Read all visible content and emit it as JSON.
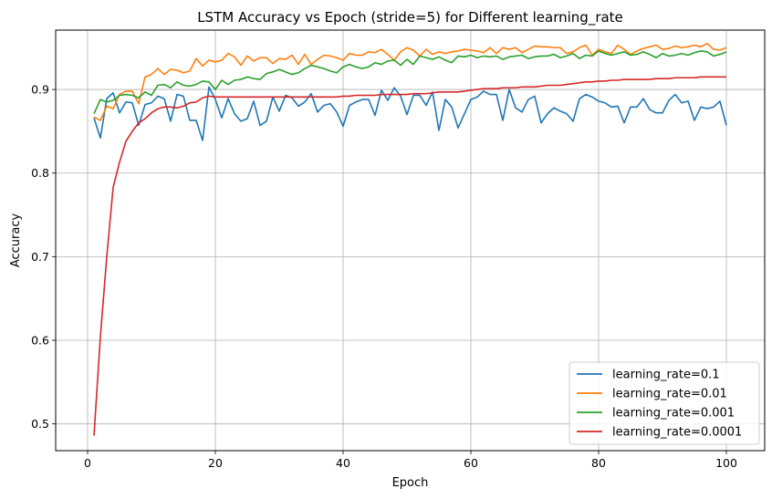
{
  "chart_data": {
    "type": "line",
    "title": "LSTM Accuracy vs Epoch (stride=5) for Different learning_rate",
    "xlabel": "Epoch",
    "ylabel": "Accuracy",
    "xlim": [
      -5,
      106
    ],
    "ylim": [
      0.468,
      0.971
    ],
    "xticks": [
      0,
      20,
      40,
      60,
      80,
      100
    ],
    "yticks": [
      0.5,
      0.6,
      0.7,
      0.8,
      0.9
    ],
    "grid": true,
    "legend_position": "lower-right",
    "x": [
      1,
      2,
      3,
      4,
      5,
      6,
      7,
      8,
      9,
      10,
      11,
      12,
      13,
      14,
      15,
      16,
      17,
      18,
      19,
      20,
      21,
      22,
      23,
      24,
      25,
      26,
      27,
      28,
      29,
      30,
      31,
      32,
      33,
      34,
      35,
      36,
      37,
      38,
      39,
      40,
      41,
      42,
      43,
      44,
      45,
      46,
      47,
      48,
      49,
      50,
      51,
      52,
      53,
      54,
      55,
      56,
      57,
      58,
      59,
      60,
      61,
      62,
      63,
      64,
      65,
      66,
      67,
      68,
      69,
      70,
      71,
      72,
      73,
      74,
      75,
      76,
      77,
      78,
      79,
      80,
      81,
      82,
      83,
      84,
      85,
      86,
      87,
      88,
      89,
      90,
      91,
      92,
      93,
      94,
      95,
      96,
      97,
      98,
      99,
      100
    ],
    "series": [
      {
        "name": "learning_rate=0.1",
        "color": "#1f77b4",
        "values": [
          0.866,
          0.842,
          0.889,
          0.896,
          0.872,
          0.885,
          0.884,
          0.857,
          0.882,
          0.884,
          0.892,
          0.889,
          0.862,
          0.894,
          0.892,
          0.863,
          0.863,
          0.839,
          0.903,
          0.888,
          0.866,
          0.889,
          0.871,
          0.862,
          0.865,
          0.886,
          0.857,
          0.862,
          0.891,
          0.874,
          0.893,
          0.89,
          0.88,
          0.885,
          0.895,
          0.873,
          0.881,
          0.883,
          0.873,
          0.856,
          0.881,
          0.885,
          0.888,
          0.888,
          0.869,
          0.899,
          0.887,
          0.902,
          0.892,
          0.87,
          0.893,
          0.893,
          0.881,
          0.897,
          0.851,
          0.888,
          0.879,
          0.854,
          0.871,
          0.888,
          0.891,
          0.898,
          0.894,
          0.894,
          0.863,
          0.9,
          0.878,
          0.873,
          0.888,
          0.892,
          0.86,
          0.871,
          0.878,
          0.874,
          0.871,
          0.862,
          0.889,
          0.894,
          0.891,
          0.886,
          0.884,
          0.879,
          0.88,
          0.86,
          0.879,
          0.879,
          0.889,
          0.876,
          0.872,
          0.872,
          0.887,
          0.894,
          0.884,
          0.886,
          0.863,
          0.879,
          0.877,
          0.879,
          0.886,
          0.857
        ]
      },
      {
        "name": "learning_rate=0.01",
        "color": "#ff7f0e",
        "values": [
          0.867,
          0.863,
          0.88,
          0.877,
          0.894,
          0.898,
          0.898,
          0.883,
          0.915,
          0.918,
          0.925,
          0.918,
          0.924,
          0.923,
          0.92,
          0.922,
          0.937,
          0.928,
          0.935,
          0.933,
          0.935,
          0.943,
          0.939,
          0.929,
          0.94,
          0.934,
          0.938,
          0.938,
          0.931,
          0.937,
          0.936,
          0.941,
          0.93,
          0.942,
          0.93,
          0.936,
          0.941,
          0.94,
          0.938,
          0.935,
          0.943,
          0.941,
          0.941,
          0.945,
          0.944,
          0.948,
          0.942,
          0.935,
          0.945,
          0.95,
          0.947,
          0.94,
          0.948,
          0.942,
          0.945,
          0.943,
          0.945,
          0.946,
          0.948,
          0.947,
          0.946,
          0.944,
          0.95,
          0.943,
          0.95,
          0.948,
          0.95,
          0.944,
          0.948,
          0.952,
          0.951,
          0.951,
          0.95,
          0.95,
          0.943,
          0.945,
          0.95,
          0.953,
          0.941,
          0.948,
          0.945,
          0.943,
          0.953,
          0.948,
          0.942,
          0.946,
          0.949,
          0.951,
          0.953,
          0.948,
          0.949,
          0.952,
          0.95,
          0.951,
          0.953,
          0.951,
          0.955,
          0.948,
          0.947,
          0.95
        ]
      },
      {
        "name": "learning_rate=0.001",
        "color": "#2ca02c",
        "values": [
          0.871,
          0.888,
          0.885,
          0.887,
          0.893,
          0.894,
          0.893,
          0.89,
          0.897,
          0.893,
          0.905,
          0.906,
          0.902,
          0.909,
          0.905,
          0.904,
          0.906,
          0.91,
          0.909,
          0.9,
          0.911,
          0.906,
          0.911,
          0.912,
          0.915,
          0.913,
          0.912,
          0.919,
          0.921,
          0.924,
          0.921,
          0.918,
          0.92,
          0.925,
          0.929,
          0.927,
          0.925,
          0.922,
          0.92,
          0.927,
          0.93,
          0.927,
          0.925,
          0.927,
          0.932,
          0.93,
          0.934,
          0.935,
          0.929,
          0.936,
          0.93,
          0.94,
          0.938,
          0.936,
          0.939,
          0.935,
          0.932,
          0.94,
          0.939,
          0.941,
          0.938,
          0.94,
          0.939,
          0.94,
          0.936,
          0.939,
          0.94,
          0.941,
          0.937,
          0.939,
          0.94,
          0.94,
          0.942,
          0.938,
          0.94,
          0.943,
          0.937,
          0.941,
          0.94,
          0.946,
          0.943,
          0.941,
          0.943,
          0.945,
          0.941,
          0.942,
          0.945,
          0.942,
          0.938,
          0.943,
          0.94,
          0.941,
          0.943,
          0.941,
          0.944,
          0.946,
          0.945,
          0.94,
          0.942,
          0.945
        ]
      },
      {
        "name": "learning_rate=0.0001",
        "color": "#d62728",
        "values": [
          0.486,
          0.604,
          0.7,
          0.783,
          0.813,
          0.838,
          0.85,
          0.86,
          0.865,
          0.872,
          0.877,
          0.879,
          0.879,
          0.878,
          0.88,
          0.884,
          0.885,
          0.89,
          0.892,
          0.891,
          0.891,
          0.891,
          0.891,
          0.891,
          0.891,
          0.891,
          0.891,
          0.891,
          0.891,
          0.891,
          0.891,
          0.891,
          0.891,
          0.891,
          0.891,
          0.891,
          0.891,
          0.891,
          0.891,
          0.892,
          0.892,
          0.893,
          0.893,
          0.893,
          0.893,
          0.894,
          0.894,
          0.894,
          0.894,
          0.894,
          0.895,
          0.895,
          0.895,
          0.896,
          0.897,
          0.897,
          0.897,
          0.897,
          0.898,
          0.899,
          0.9,
          0.901,
          0.901,
          0.901,
          0.902,
          0.902,
          0.902,
          0.903,
          0.903,
          0.903,
          0.904,
          0.905,
          0.905,
          0.905,
          0.906,
          0.907,
          0.908,
          0.909,
          0.909,
          0.91,
          0.91,
          0.911,
          0.911,
          0.912,
          0.912,
          0.912,
          0.912,
          0.912,
          0.913,
          0.913,
          0.913,
          0.914,
          0.914,
          0.914,
          0.914,
          0.915,
          0.915,
          0.915,
          0.915,
          0.915
        ]
      }
    ]
  }
}
